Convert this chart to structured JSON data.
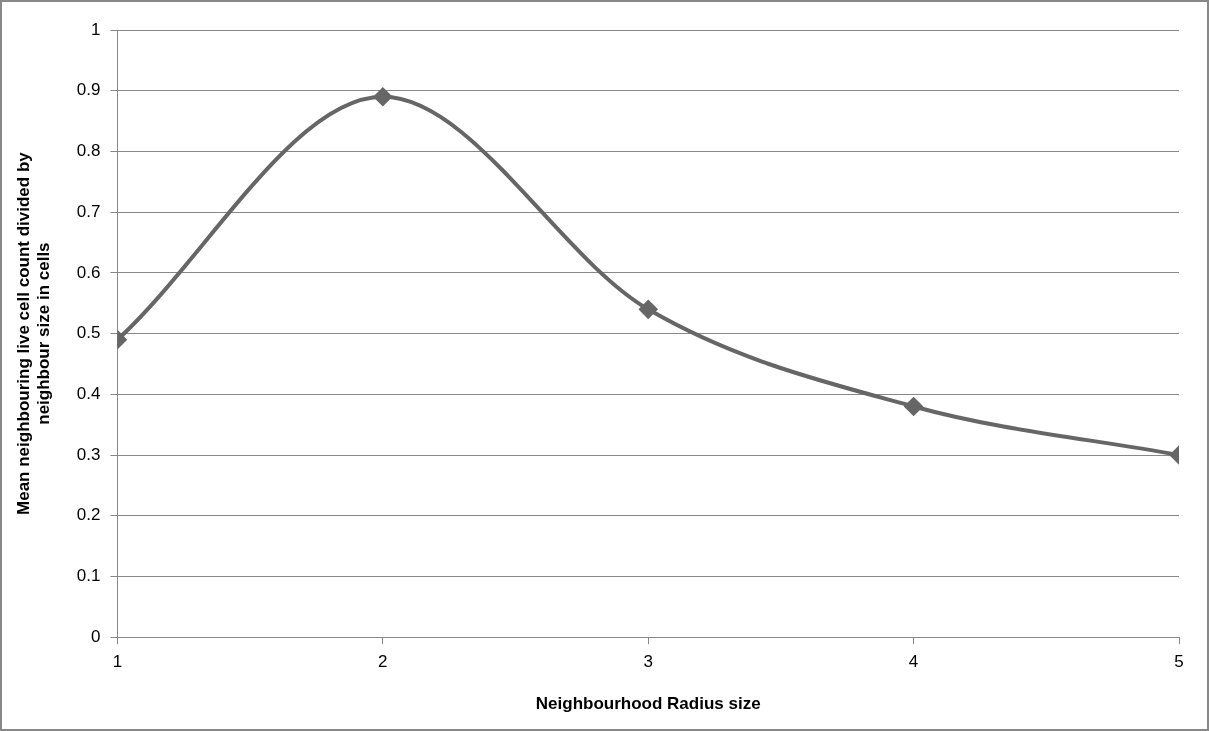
{
  "chart_data": {
    "type": "line",
    "xlabel": "Neighbourhood Radius size",
    "ylabel": "Mean neighbouring live cell count divided by neighbour size in cells",
    "x": [
      1,
      2,
      3,
      4,
      5
    ],
    "series": [
      {
        "color": "#666666",
        "values": [
          0.49,
          0.89,
          0.54,
          0.38,
          0.3
        ]
      }
    ],
    "xlim": [
      1,
      5
    ],
    "xticks": [
      1,
      2,
      3,
      4,
      5
    ],
    "ylim": [
      0,
      1
    ],
    "yticks": [
      0,
      0.1,
      0.2,
      0.3,
      0.4,
      0.5,
      0.6,
      0.7,
      0.8,
      0.9,
      1
    ],
    "grid": "y",
    "legend": false,
    "marker": "diamond",
    "line_style": "solid"
  }
}
